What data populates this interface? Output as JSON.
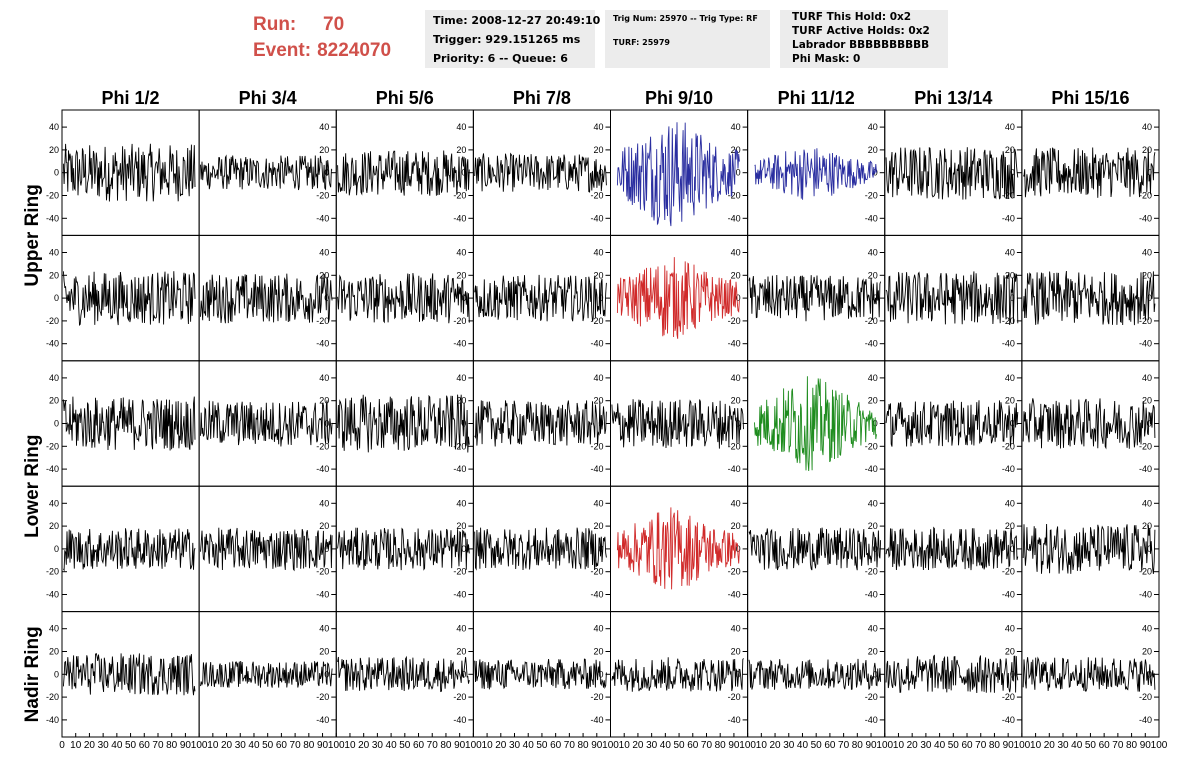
{
  "header": {
    "run_label": "Run:",
    "run_value": "70",
    "event_label": "Event:",
    "event_value": "8224070"
  },
  "info_time": {
    "time": "Time: 2008-12-27 20:49:10",
    "trigger": "Trigger: 929.151265 ms",
    "priority": "Priority: 6 -- Queue: 6"
  },
  "info_trig": {
    "trig": "Trig Num: 25970 -- Trig Type: RF",
    "turf": "TURF: 25979"
  },
  "info_turf": {
    "this_hold": "TURF This Hold: 0x2",
    "active_holds": "TURF Active Holds: 0x2",
    "labrador": "Labrador BBBBBBBBBB",
    "phi_mask": "Phi Mask: 0"
  },
  "chart_data": {
    "type": "line",
    "columns": [
      "Phi 1/2",
      "Phi 3/4",
      "Phi 5/6",
      "Phi 7/8",
      "Phi 9/10",
      "Phi 11/12",
      "Phi 13/14",
      "Phi 15/16"
    ],
    "row_groups": [
      {
        "label": "Upper Ring",
        "rows": [
          0,
          1
        ]
      },
      {
        "label": "Lower Ring",
        "rows": [
          2,
          3
        ]
      },
      {
        "label": "Nadir Ring",
        "rows": [
          4
        ]
      }
    ],
    "xlim": [
      0,
      100
    ],
    "ylim": [
      -55,
      55
    ],
    "y_ticks": [
      -40,
      -20,
      0,
      20,
      40
    ],
    "x_ticks": [
      0,
      10,
      20,
      30,
      40,
      50,
      60,
      70,
      80,
      90,
      100
    ],
    "amplitude": [
      [
        15,
        9,
        12,
        10,
        20,
        10,
        14,
        13
      ],
      [
        14,
        13,
        13,
        12,
        15,
        12,
        14,
        14
      ],
      [
        14,
        12,
        15,
        12,
        13,
        17,
        12,
        13
      ],
      [
        11,
        11,
        11,
        11,
        15,
        11,
        11,
        13
      ],
      [
        11,
        7,
        9,
        8,
        9,
        8,
        10,
        9
      ]
    ],
    "colors": {
      "default": "#000000",
      "0,4": "#2a2ea0",
      "0,5": "#2a2ea0",
      "1,4": "#d02a2a",
      "3,4": "#d02a2a",
      "2,5": "#1e8c1e"
    }
  }
}
